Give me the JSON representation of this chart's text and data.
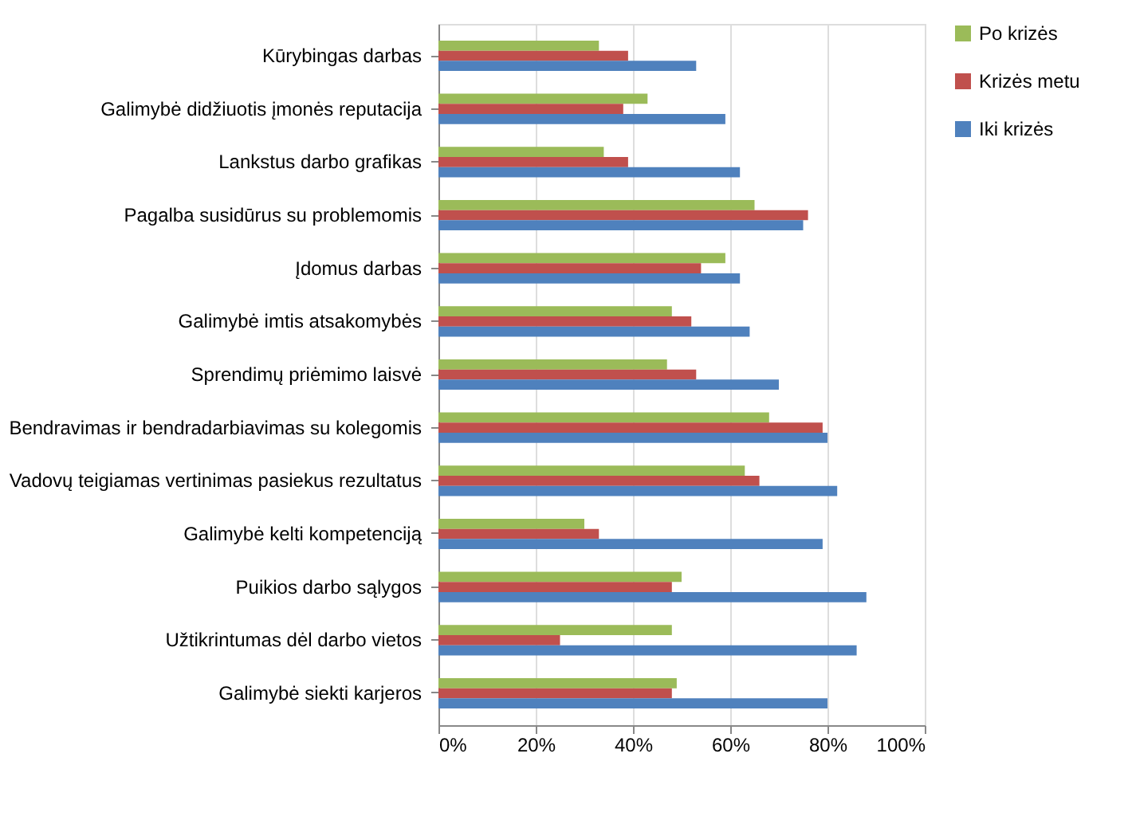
{
  "chart_data": {
    "type": "bar",
    "orientation": "horizontal",
    "categories": [
      "Kūrybingas darbas",
      "Galimybė didžiuotis įmonės reputacija",
      "Lankstus darbo grafikas",
      "Pagalba susidūrus su problemomis",
      "Įdomus darbas",
      "Galimybė imtis atsakomybės",
      "Sprendimų priėmimo laisvė",
      "Bendravimas ir bendradarbiavimas su kolegomis",
      "Vadovų teigiamas vertinimas pasiekus rezultatus",
      "Galimybė kelti kompetenciją",
      "Puikios darbo sąlygos",
      "Užtikrintumas dėl darbo vietos",
      "Galimybė siekti karjeros"
    ],
    "series": [
      {
        "name": "Po krizės",
        "color": "#9bbb59",
        "values": [
          33,
          43,
          34,
          65,
          59,
          48,
          47,
          68,
          63,
          30,
          50,
          48,
          49
        ]
      },
      {
        "name": "Krizės metu",
        "color": "#c0504d",
        "values": [
          39,
          38,
          39,
          76,
          54,
          52,
          53,
          79,
          66,
          33,
          48,
          25,
          48
        ]
      },
      {
        "name": "Iki krizės",
        "color": "#4f81bd",
        "values": [
          53,
          59,
          62,
          75,
          62,
          64,
          70,
          80,
          82,
          79,
          88,
          86,
          80
        ]
      }
    ],
    "xlim": [
      0,
      100
    ],
    "xticks": [
      {
        "value": 0,
        "label": "0%"
      },
      {
        "value": 20,
        "label": "20%"
      },
      {
        "value": 40,
        "label": "40%"
      },
      {
        "value": 60,
        "label": "60%"
      },
      {
        "value": 80,
        "label": "80%"
      },
      {
        "value": 100,
        "label": "100%"
      }
    ],
    "grid": "x",
    "legend": "right"
  }
}
